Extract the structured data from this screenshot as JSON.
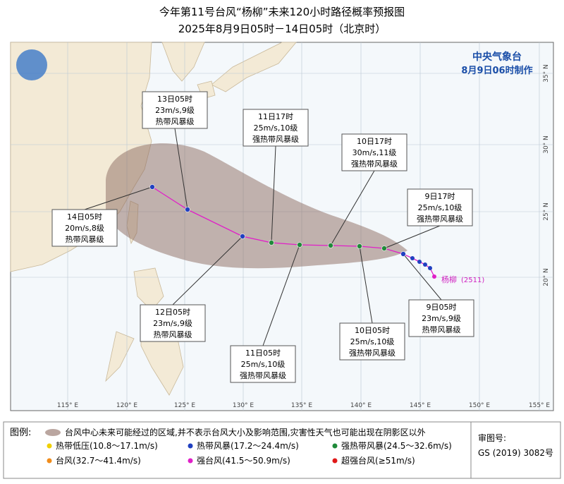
{
  "header": {
    "title": "今年第11号台风“杨柳”未来120小时路径概率预报图",
    "subtitle": "2025年8月9日05时－14日05时（北京时）"
  },
  "agency": {
    "name": "中央气象台",
    "issued": "8月9日06时制作"
  },
  "map": {
    "lon_labels": [
      "115° E",
      "120° E",
      "125° E",
      "130° E",
      "135° E",
      "140° E",
      "145° E",
      "150° E",
      "155° E"
    ],
    "lat_labels": [
      "35° N",
      "30° N",
      "25° N",
      "20° N"
    ],
    "typhoon_label": "杨柳",
    "typhoon_id": "(2511)"
  },
  "forecasts": [
    {
      "time": "9日05时",
      "wind": "23m/s,9级",
      "category": "热带风暴级"
    },
    {
      "time": "9日17时",
      "wind": "25m/s,10级",
      "category": "强热带风暴级"
    },
    {
      "time": "10日05时",
      "wind": "25m/s,10级",
      "category": "强热带风暴级"
    },
    {
      "time": "10日17时",
      "wind": "30m/s,11级",
      "category": "强热带风暴级"
    },
    {
      "time": "11日05时",
      "wind": "25m/s,10级",
      "category": "强热带风暴级"
    },
    {
      "time": "11日17时",
      "wind": "25m/s,10级",
      "category": "强热带风暴级"
    },
    {
      "time": "12日05时",
      "wind": "23m/s,9级",
      "category": "热带风暴级"
    },
    {
      "time": "13日05时",
      "wind": "23m/s,9级",
      "category": "热带风暴级"
    },
    {
      "time": "14日05时",
      "wind": "20m/s,8级",
      "category": "热带风暴级"
    }
  ],
  "legend": {
    "title": "图例:",
    "cone": "台风中心未来可能经过的区域,并不表示台风大小及影响范围,灾害性天气也可能出现在阴影区以外",
    "items": [
      "热带低压(10.8～17.1m/s)",
      "热带风暴(17.2～24.4m/s)",
      "强热带风暴(24.5～32.6m/s)",
      "台风(32.7～41.4m/s)",
      "强台风(41.5～50.9m/s)",
      "超强台风(≥51m/s)"
    ]
  },
  "approval": {
    "label": "审图号:",
    "number": "GS (2019) 3082号"
  }
}
